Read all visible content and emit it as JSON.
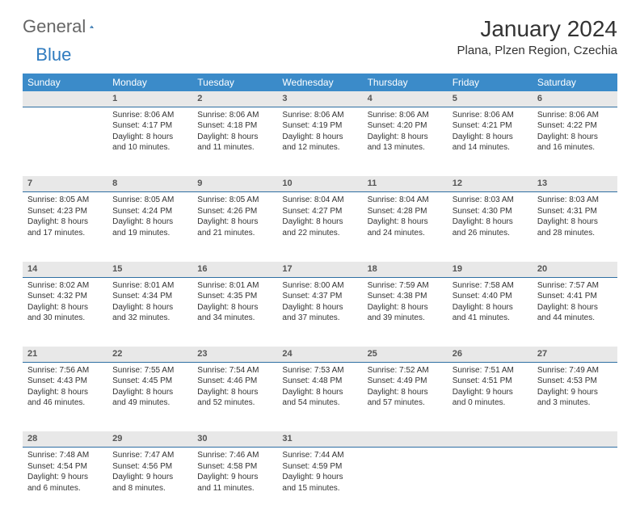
{
  "logo": {
    "general": "General",
    "blue": "Blue"
  },
  "title": "January 2024",
  "location": "Plana, Plzen Region, Czechia",
  "colors": {
    "header_bg": "#3b8bc9",
    "header_text": "#ffffff",
    "daynum_bg": "#e8e8e8",
    "daynum_border": "#2f6fa3",
    "text": "#333333",
    "logo_gray": "#666666",
    "logo_blue": "#2f7bbf"
  },
  "weekdays": [
    "Sunday",
    "Monday",
    "Tuesday",
    "Wednesday",
    "Thursday",
    "Friday",
    "Saturday"
  ],
  "weeks": [
    [
      null,
      {
        "n": "1",
        "sr": "Sunrise: 8:06 AM",
        "ss": "Sunset: 4:17 PM",
        "dl": "Daylight: 8 hours and 10 minutes."
      },
      {
        "n": "2",
        "sr": "Sunrise: 8:06 AM",
        "ss": "Sunset: 4:18 PM",
        "dl": "Daylight: 8 hours and 11 minutes."
      },
      {
        "n": "3",
        "sr": "Sunrise: 8:06 AM",
        "ss": "Sunset: 4:19 PM",
        "dl": "Daylight: 8 hours and 12 minutes."
      },
      {
        "n": "4",
        "sr": "Sunrise: 8:06 AM",
        "ss": "Sunset: 4:20 PM",
        "dl": "Daylight: 8 hours and 13 minutes."
      },
      {
        "n": "5",
        "sr": "Sunrise: 8:06 AM",
        "ss": "Sunset: 4:21 PM",
        "dl": "Daylight: 8 hours and 14 minutes."
      },
      {
        "n": "6",
        "sr": "Sunrise: 8:06 AM",
        "ss": "Sunset: 4:22 PM",
        "dl": "Daylight: 8 hours and 16 minutes."
      }
    ],
    [
      {
        "n": "7",
        "sr": "Sunrise: 8:05 AM",
        "ss": "Sunset: 4:23 PM",
        "dl": "Daylight: 8 hours and 17 minutes."
      },
      {
        "n": "8",
        "sr": "Sunrise: 8:05 AM",
        "ss": "Sunset: 4:24 PM",
        "dl": "Daylight: 8 hours and 19 minutes."
      },
      {
        "n": "9",
        "sr": "Sunrise: 8:05 AM",
        "ss": "Sunset: 4:26 PM",
        "dl": "Daylight: 8 hours and 21 minutes."
      },
      {
        "n": "10",
        "sr": "Sunrise: 8:04 AM",
        "ss": "Sunset: 4:27 PM",
        "dl": "Daylight: 8 hours and 22 minutes."
      },
      {
        "n": "11",
        "sr": "Sunrise: 8:04 AM",
        "ss": "Sunset: 4:28 PM",
        "dl": "Daylight: 8 hours and 24 minutes."
      },
      {
        "n": "12",
        "sr": "Sunrise: 8:03 AM",
        "ss": "Sunset: 4:30 PM",
        "dl": "Daylight: 8 hours and 26 minutes."
      },
      {
        "n": "13",
        "sr": "Sunrise: 8:03 AM",
        "ss": "Sunset: 4:31 PM",
        "dl": "Daylight: 8 hours and 28 minutes."
      }
    ],
    [
      {
        "n": "14",
        "sr": "Sunrise: 8:02 AM",
        "ss": "Sunset: 4:32 PM",
        "dl": "Daylight: 8 hours and 30 minutes."
      },
      {
        "n": "15",
        "sr": "Sunrise: 8:01 AM",
        "ss": "Sunset: 4:34 PM",
        "dl": "Daylight: 8 hours and 32 minutes."
      },
      {
        "n": "16",
        "sr": "Sunrise: 8:01 AM",
        "ss": "Sunset: 4:35 PM",
        "dl": "Daylight: 8 hours and 34 minutes."
      },
      {
        "n": "17",
        "sr": "Sunrise: 8:00 AM",
        "ss": "Sunset: 4:37 PM",
        "dl": "Daylight: 8 hours and 37 minutes."
      },
      {
        "n": "18",
        "sr": "Sunrise: 7:59 AM",
        "ss": "Sunset: 4:38 PM",
        "dl": "Daylight: 8 hours and 39 minutes."
      },
      {
        "n": "19",
        "sr": "Sunrise: 7:58 AM",
        "ss": "Sunset: 4:40 PM",
        "dl": "Daylight: 8 hours and 41 minutes."
      },
      {
        "n": "20",
        "sr": "Sunrise: 7:57 AM",
        "ss": "Sunset: 4:41 PM",
        "dl": "Daylight: 8 hours and 44 minutes."
      }
    ],
    [
      {
        "n": "21",
        "sr": "Sunrise: 7:56 AM",
        "ss": "Sunset: 4:43 PM",
        "dl": "Daylight: 8 hours and 46 minutes."
      },
      {
        "n": "22",
        "sr": "Sunrise: 7:55 AM",
        "ss": "Sunset: 4:45 PM",
        "dl": "Daylight: 8 hours and 49 minutes."
      },
      {
        "n": "23",
        "sr": "Sunrise: 7:54 AM",
        "ss": "Sunset: 4:46 PM",
        "dl": "Daylight: 8 hours and 52 minutes."
      },
      {
        "n": "24",
        "sr": "Sunrise: 7:53 AM",
        "ss": "Sunset: 4:48 PM",
        "dl": "Daylight: 8 hours and 54 minutes."
      },
      {
        "n": "25",
        "sr": "Sunrise: 7:52 AM",
        "ss": "Sunset: 4:49 PM",
        "dl": "Daylight: 8 hours and 57 minutes."
      },
      {
        "n": "26",
        "sr": "Sunrise: 7:51 AM",
        "ss": "Sunset: 4:51 PM",
        "dl": "Daylight: 9 hours and 0 minutes."
      },
      {
        "n": "27",
        "sr": "Sunrise: 7:49 AM",
        "ss": "Sunset: 4:53 PM",
        "dl": "Daylight: 9 hours and 3 minutes."
      }
    ],
    [
      {
        "n": "28",
        "sr": "Sunrise: 7:48 AM",
        "ss": "Sunset: 4:54 PM",
        "dl": "Daylight: 9 hours and 6 minutes."
      },
      {
        "n": "29",
        "sr": "Sunrise: 7:47 AM",
        "ss": "Sunset: 4:56 PM",
        "dl": "Daylight: 9 hours and 8 minutes."
      },
      {
        "n": "30",
        "sr": "Sunrise: 7:46 AM",
        "ss": "Sunset: 4:58 PM",
        "dl": "Daylight: 9 hours and 11 minutes."
      },
      {
        "n": "31",
        "sr": "Sunrise: 7:44 AM",
        "ss": "Sunset: 4:59 PM",
        "dl": "Daylight: 9 hours and 15 minutes."
      },
      null,
      null,
      null
    ]
  ]
}
